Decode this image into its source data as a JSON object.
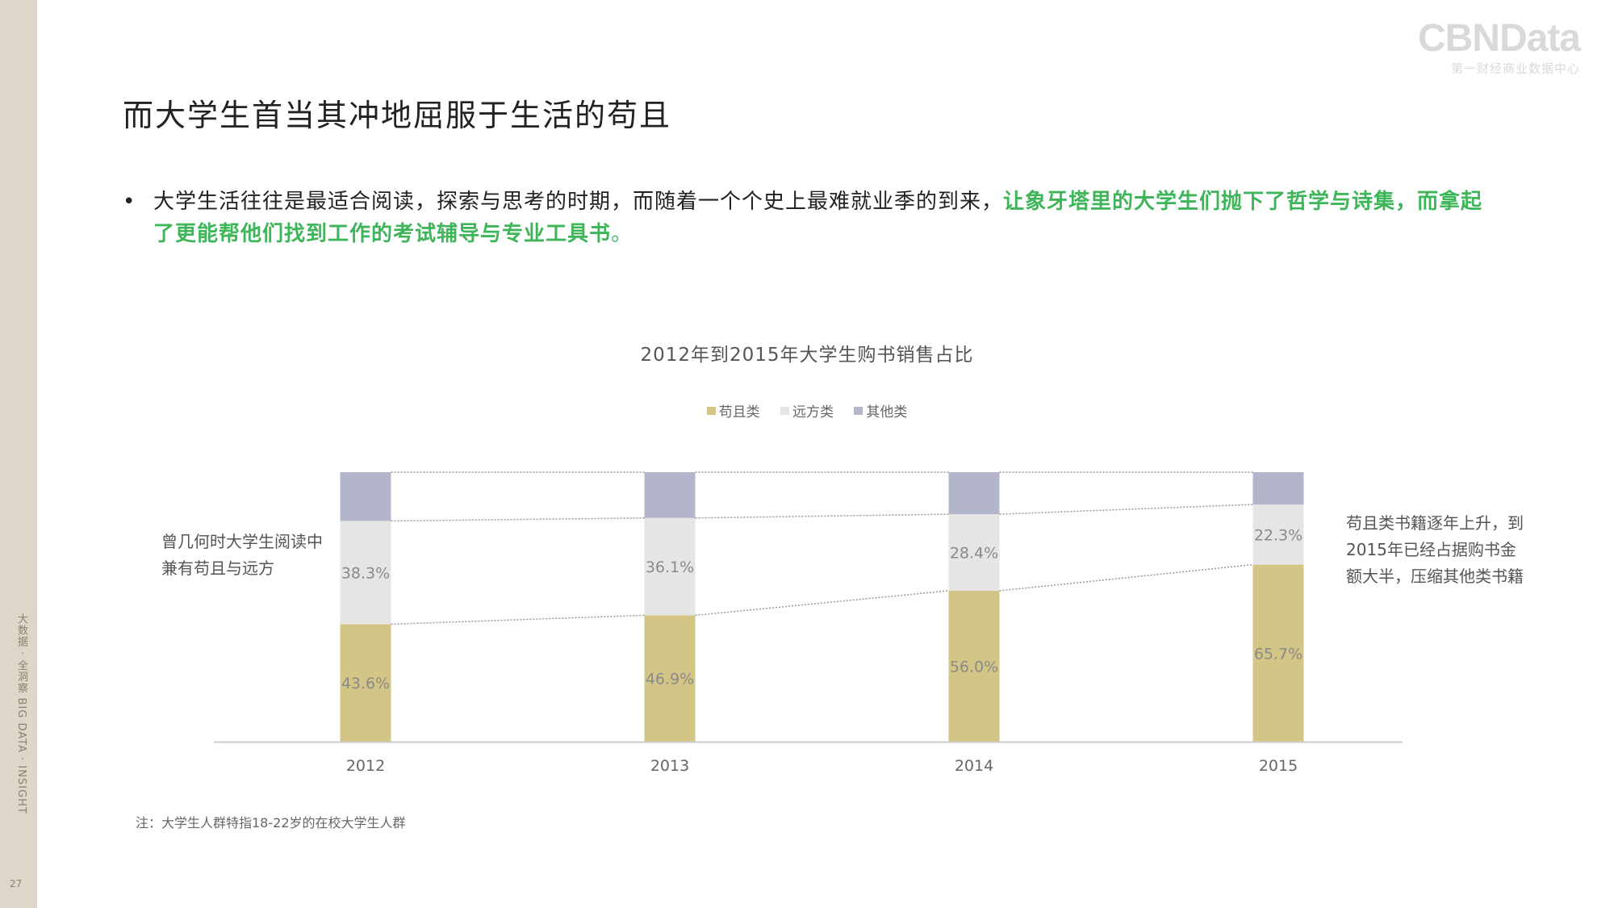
{
  "sidebar": {
    "vertical_text": "大数据 · 全洞察   BIG DATA · INSIGHT",
    "page_number": "27"
  },
  "logo": {
    "main": "CBNData",
    "sub": "第一财经商业数据中心"
  },
  "page_title": "而大学生首当其冲地屈服于生活的苟且",
  "bullet": {
    "dot": "•",
    "plain": "大学生活往往是最适合阅读，探索与思考的时期，而随着一个个史上最难就业季的到来，",
    "highlight": "让象牙塔里的大学生们抛下了哲学与诗集，而拿起了更能帮他们找到工作的考试辅导与专业工具书",
    "end": "。"
  },
  "notes": {
    "left": "曾几何时大学生阅读中兼有苟且与远方",
    "right": "苟且类书籍逐年上升，到2015年已经占据购书金额大半，压缩其他类书籍",
    "footnote": "注：大学生人群特指18-22岁的在校大学生人群"
  },
  "colors": {
    "gouqie": "#d3c585",
    "yuanfang": "#e5e5e5",
    "qita": "#b3b5cb",
    "axis": "#cccccc",
    "connector": "#999999"
  },
  "chart_data": {
    "type": "bar",
    "stacked": true,
    "title": "2012年到2015年大学生购书销售占比",
    "categories": [
      "2012",
      "2013",
      "2014",
      "2015"
    ],
    "series": [
      {
        "name": "苟且类",
        "values": [
          43.6,
          46.9,
          56.0,
          65.7
        ],
        "labels": [
          "43.6%",
          "46.9%",
          "56.0%",
          "65.7%"
        ]
      },
      {
        "name": "远方类",
        "values": [
          38.3,
          36.1,
          28.4,
          22.3
        ],
        "labels": [
          "38.3%",
          "36.1%",
          "28.4%",
          "22.3%"
        ]
      },
      {
        "name": "其他类",
        "values": [
          18.1,
          17.0,
          15.6,
          12.0
        ]
      }
    ],
    "ylim": [
      0,
      100
    ],
    "legend_position": "top-center",
    "grid": false,
    "connector_lines": "dotted"
  }
}
